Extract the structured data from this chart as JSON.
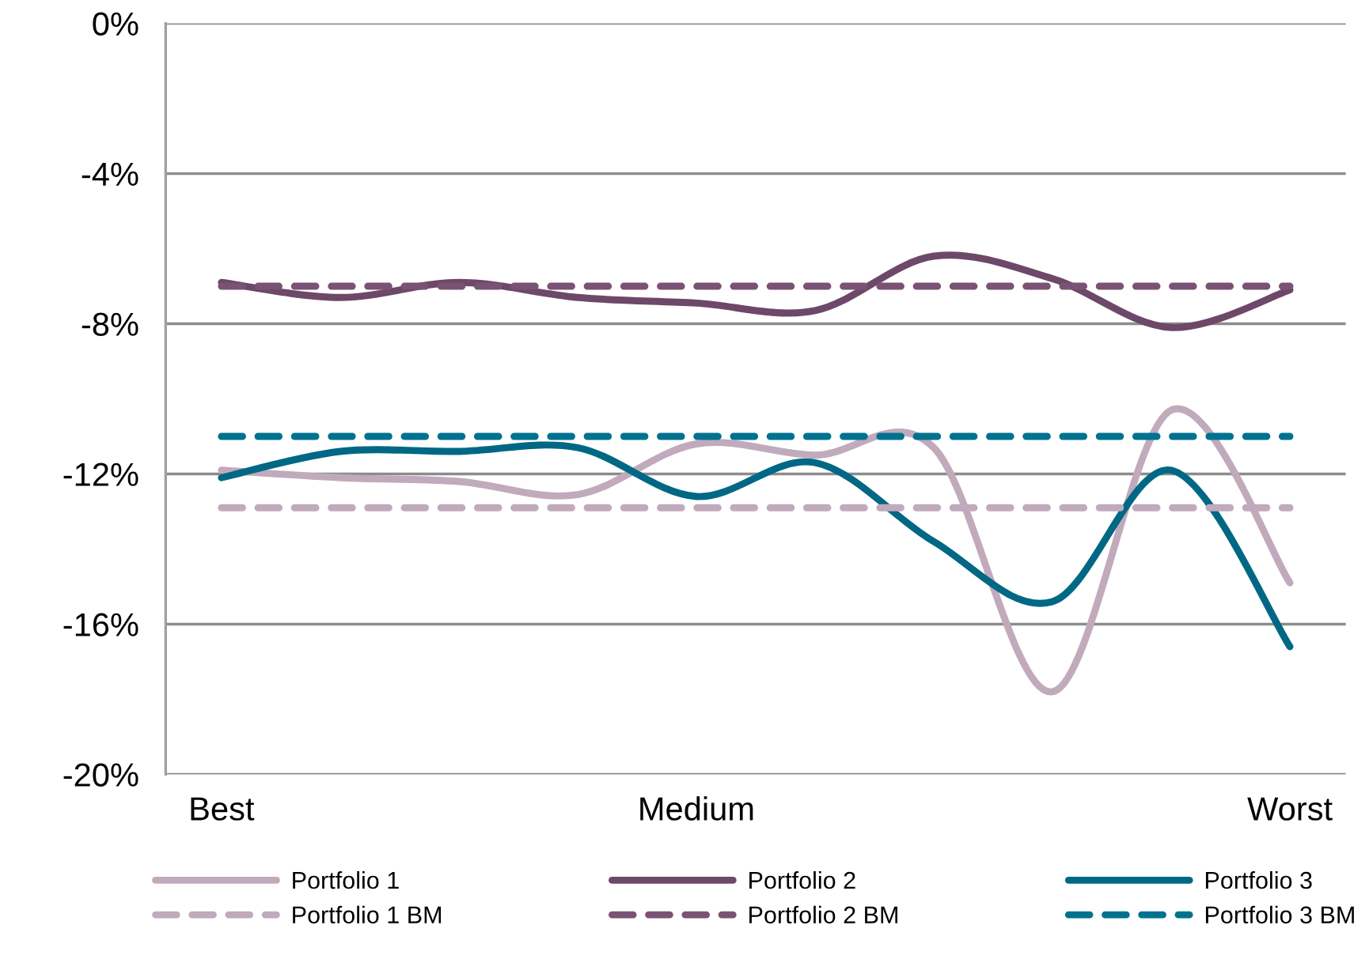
{
  "chart_data": {
    "type": "line",
    "categories": [
      "Best",
      null,
      null,
      null,
      "Medium",
      null,
      null,
      null,
      null,
      "Worst"
    ],
    "series": [
      {
        "name": "Portfolio 1",
        "color": "#c0aabc",
        "line_style": "solid",
        "values": [
          -11.9,
          -12.1,
          -12.2,
          -12.55,
          -11.2,
          -11.5,
          -11.3,
          -17.8,
          -10.3,
          -14.9
        ]
      },
      {
        "name": "Portfolio 2",
        "color": "#6e4868",
        "line_style": "solid",
        "values": [
          -6.9,
          -7.3,
          -6.9,
          -7.3,
          -7.45,
          -7.65,
          -6.2,
          -6.8,
          -8.1,
          -7.1
        ]
      },
      {
        "name": "Portfolio 3",
        "color": "#006884",
        "line_style": "solid",
        "values": [
          -12.1,
          -11.4,
          -11.4,
          -11.3,
          -12.6,
          -11.7,
          -13.8,
          -15.4,
          -11.9,
          -16.6
        ]
      },
      {
        "name": "Portfolio 1 BM",
        "color": "#c0aabc",
        "line_style": "dashed",
        "values": [
          -12.9,
          -12.9,
          -12.9,
          -12.9,
          -12.9,
          -12.9,
          -12.9,
          -12.9,
          -12.9,
          -12.9
        ]
      },
      {
        "name": "Portfolio 2 BM",
        "color": "#7a5273",
        "line_style": "dashed",
        "values": [
          -7.0,
          -7.0,
          -7.0,
          -7.0,
          -7.0,
          -7.0,
          -7.0,
          -7.0,
          -7.0,
          -7.0
        ]
      },
      {
        "name": "Portfolio 3 BM",
        "color": "#00728f",
        "line_style": "dashed",
        "values": [
          -11.0,
          -11.0,
          -11.0,
          -11.0,
          -11.0,
          -11.0,
          -11.0,
          -11.0,
          -11.0,
          -11.0
        ]
      }
    ],
    "ylim": [
      -20,
      0
    ],
    "yticks": [
      {
        "value": -20,
        "label": "-20%"
      },
      {
        "value": -16,
        "label": "-16%"
      },
      {
        "value": -12,
        "label": "-12%"
      },
      {
        "value": -8,
        "label": "-8%"
      },
      {
        "value": -4,
        "label": "-4%"
      },
      {
        "value": 0,
        "label": "0%"
      }
    ],
    "grid": "y",
    "legend": "bottom",
    "marker": "none"
  }
}
